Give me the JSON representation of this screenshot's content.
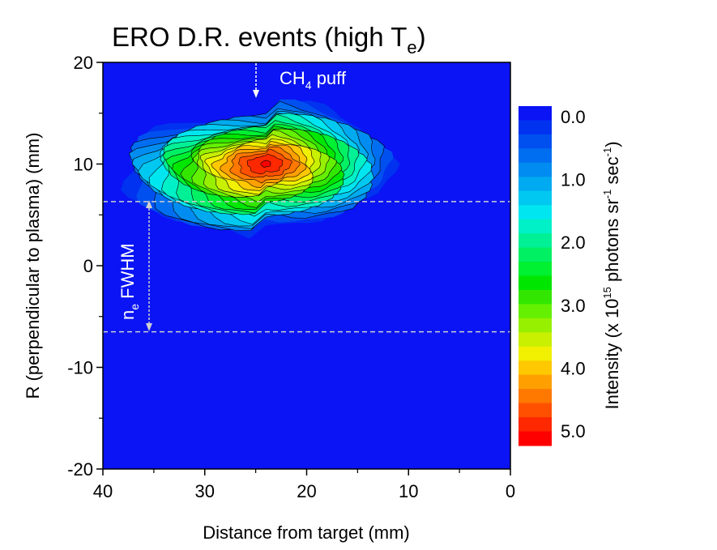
{
  "chart_data": {
    "type": "heatmap",
    "title": {
      "main": "ERO D.R. events (high T",
      "sub": "e",
      "close": ")"
    },
    "xlabel": "Distance from target (mm)",
    "ylabel": "R (perpendicular to plasma) (mm)",
    "xlim": [
      40,
      0
    ],
    "ylim": [
      -20,
      20
    ],
    "x_ticks": [
      "40",
      "30",
      "20",
      "10",
      "0"
    ],
    "y_ticks": [
      "20",
      "10",
      "0",
      "-10",
      "-20"
    ],
    "x_tick_values": [
      40,
      30,
      20,
      10,
      0
    ],
    "y_tick_values": [
      20,
      10,
      0,
      -10,
      -20
    ],
    "peak": {
      "x": 24,
      "y": 10,
      "value": 5.0
    },
    "fwhm_lines_y": [
      6.3,
      -6.5
    ],
    "colorbar": {
      "label_parts": [
        "Intensity (x 10",
        "15",
        " photons sr",
        "-1",
        " sec",
        "-1",
        ")"
      ],
      "range": [
        0.0,
        5.4
      ],
      "tick_labels": [
        "0.0",
        "1.0",
        "2.0",
        "3.0",
        "4.0",
        "5.0"
      ],
      "tick_values": [
        0.0,
        1.0,
        2.0,
        3.0,
        4.0,
        5.0
      ],
      "levels": 21,
      "colors": [
        "#0a14f5",
        "#0032f0",
        "#0050f0",
        "#006ef0",
        "#008cf0",
        "#00aaf0",
        "#00c8f0",
        "#00e6f0",
        "#00f0c8",
        "#00f096",
        "#00f064",
        "#00f032",
        "#00e600",
        "#32e600",
        "#64f000",
        "#96f000",
        "#c8f000",
        "#f0f000",
        "#ffc800",
        "#ffa000",
        "#ff7800",
        "#ff5000",
        "#ff2800",
        "#ff0000"
      ]
    }
  },
  "annotations": {
    "puff": {
      "main": "CH",
      "sub": "4",
      "rest": " puff"
    },
    "fwhm": {
      "main": "n",
      "sub": "e",
      "rest": " FWHM"
    }
  }
}
